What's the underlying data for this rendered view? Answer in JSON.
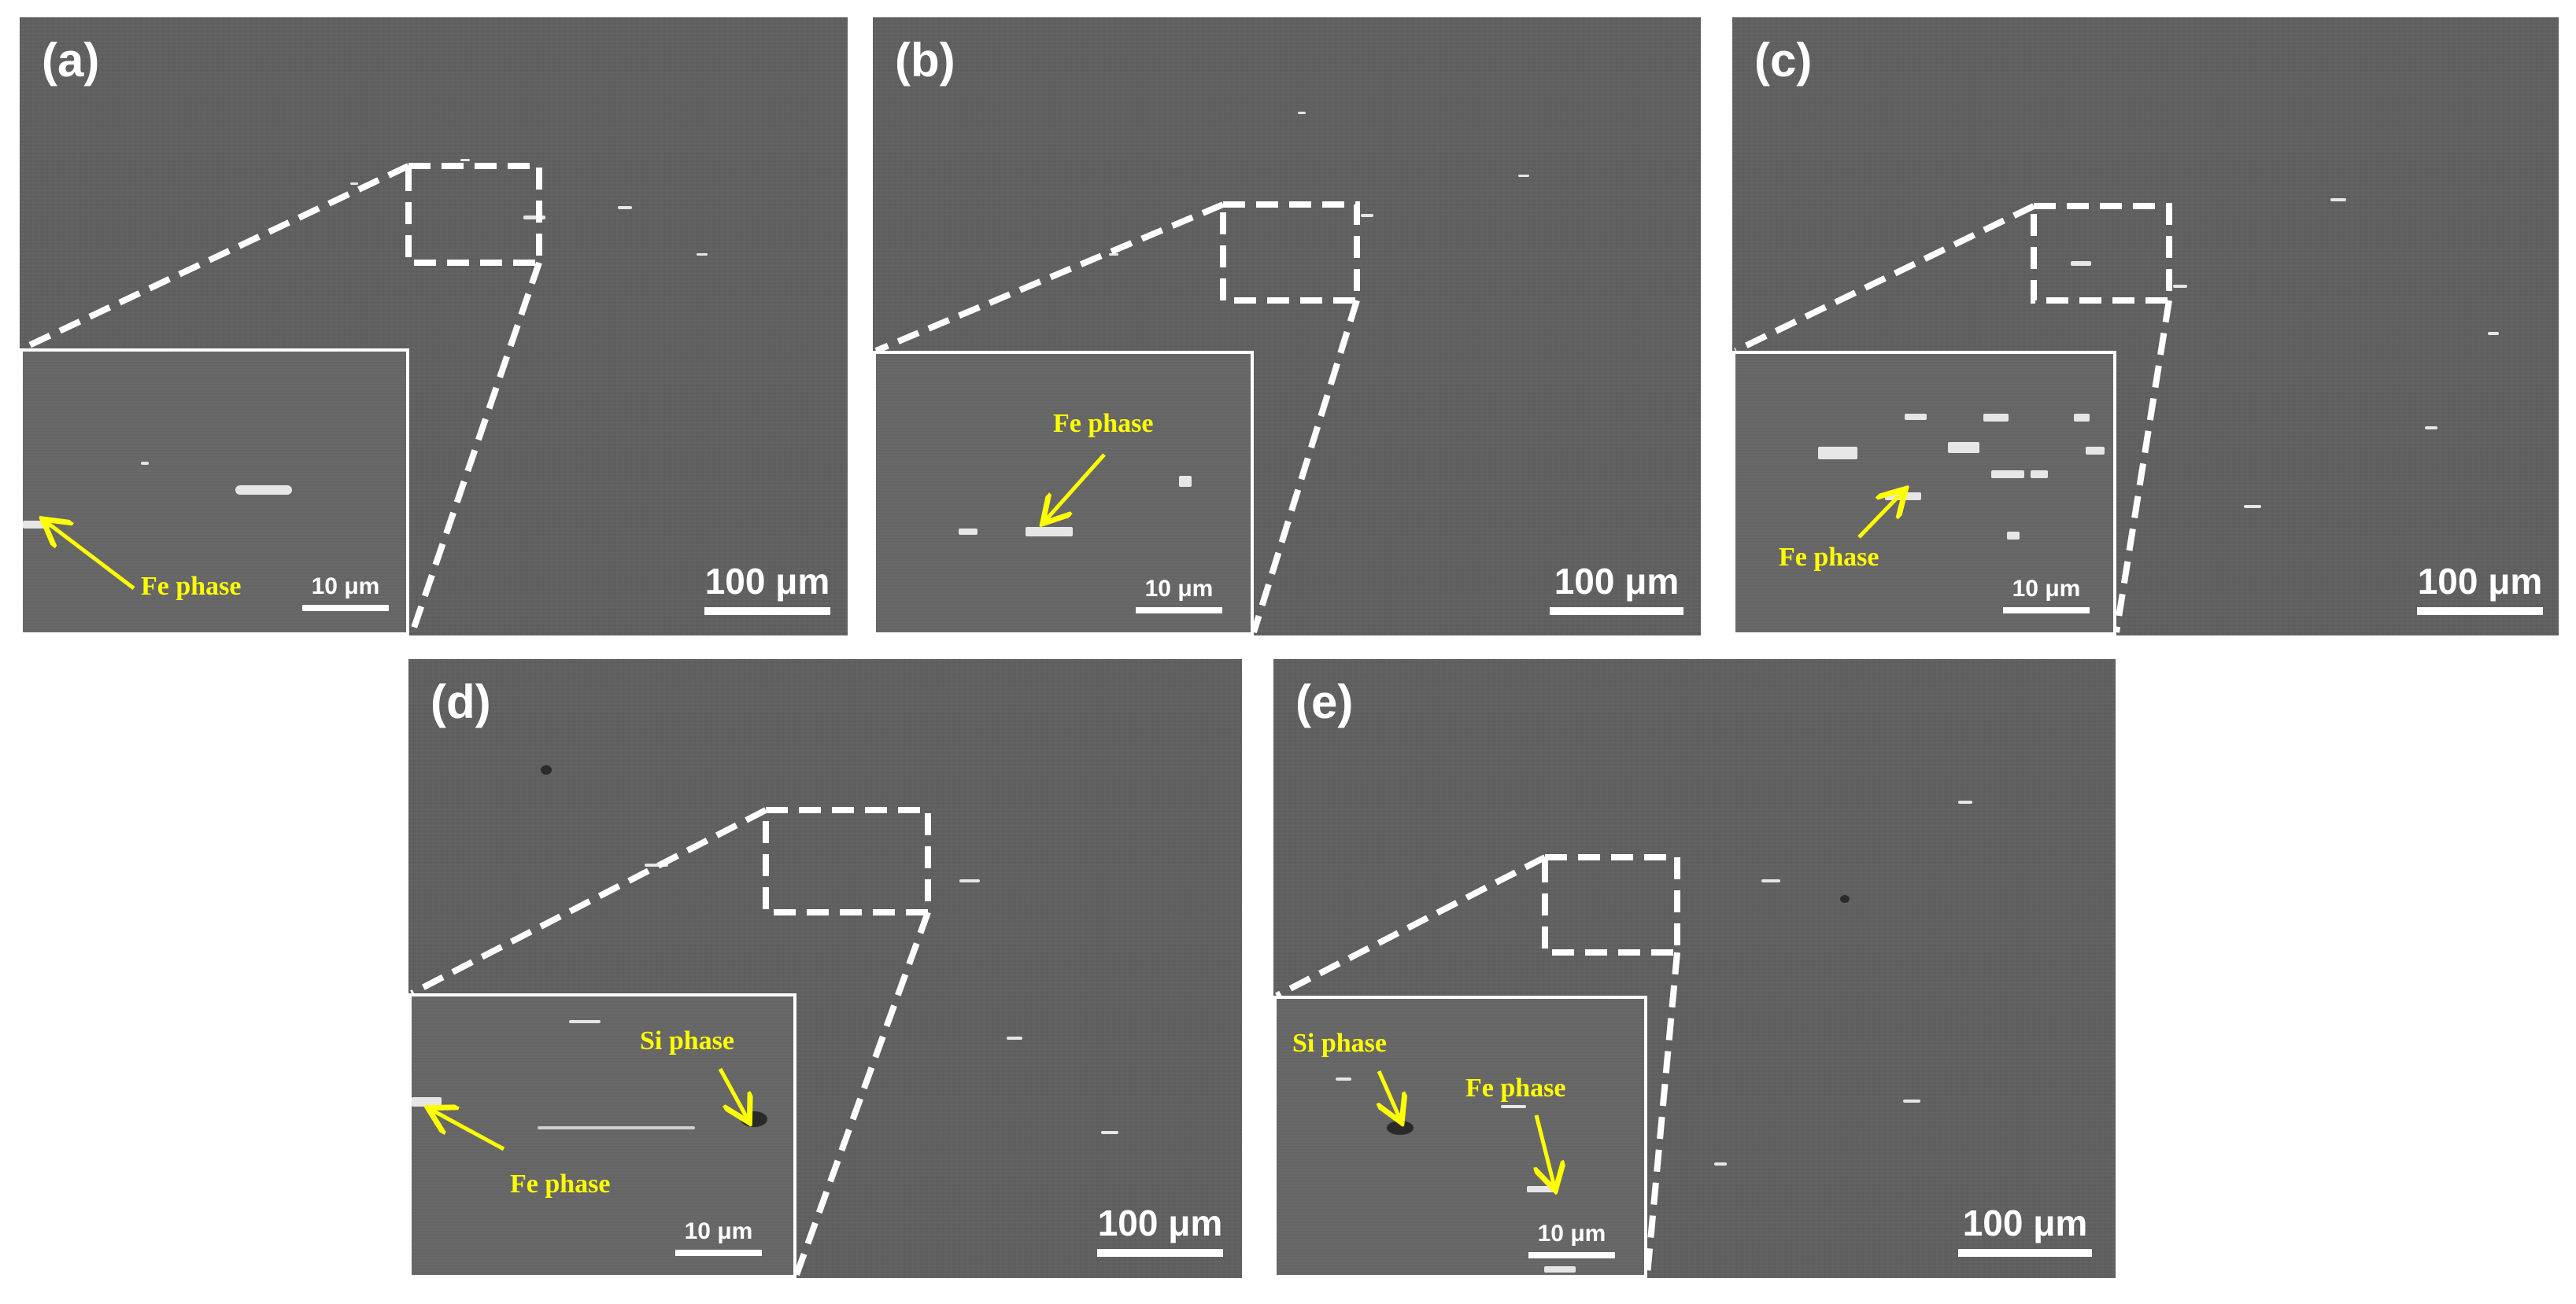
{
  "panels": [
    {
      "label": "(a)",
      "scale_main": "100 μm",
      "scale_inset": "10 μm",
      "annotations": [
        "Fe phase"
      ]
    },
    {
      "label": "(b)",
      "scale_main": "100 μm",
      "scale_inset": "10 μm",
      "annotations": [
        "Fe phase"
      ]
    },
    {
      "label": "(c)",
      "scale_main": "100 μm",
      "scale_inset": "10 μm",
      "annotations": [
        "Fe phase"
      ]
    },
    {
      "label": "(d)",
      "scale_main": "100 μm",
      "scale_inset": "10 μm",
      "annotations": [
        "Si phase",
        "Fe phase"
      ]
    },
    {
      "label": "(e)",
      "scale_main": "100 μm",
      "scale_inset": "10 μm",
      "annotations": [
        "Si phase",
        "Fe phase"
      ]
    }
  ],
  "colors": {
    "annotation": "#ffff00",
    "background": "#5f5f5f",
    "frame": "#ffffff"
  }
}
